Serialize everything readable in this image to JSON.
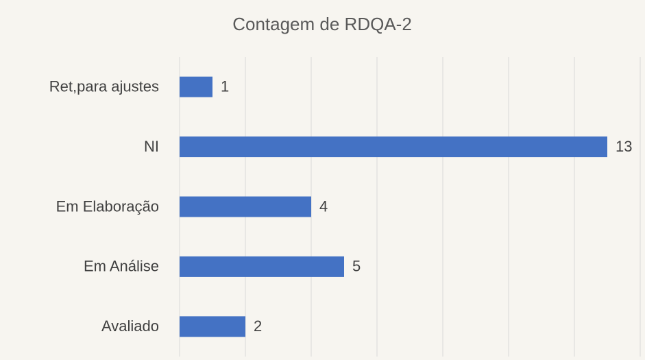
{
  "chart_data": {
    "type": "bar",
    "orientation": "horizontal",
    "title": "Contagem de RDQA-2",
    "categories": [
      "Ret,para ajustes",
      "NI",
      "Em Elaboração",
      "Em Análise",
      "Avaliado"
    ],
    "values": [
      1,
      13,
      4,
      5,
      2
    ],
    "color": "#4472c4",
    "xlim": [
      0,
      14
    ],
    "xticks": [
      0,
      2,
      4,
      6,
      8,
      10,
      12,
      14
    ],
    "grid": true
  }
}
